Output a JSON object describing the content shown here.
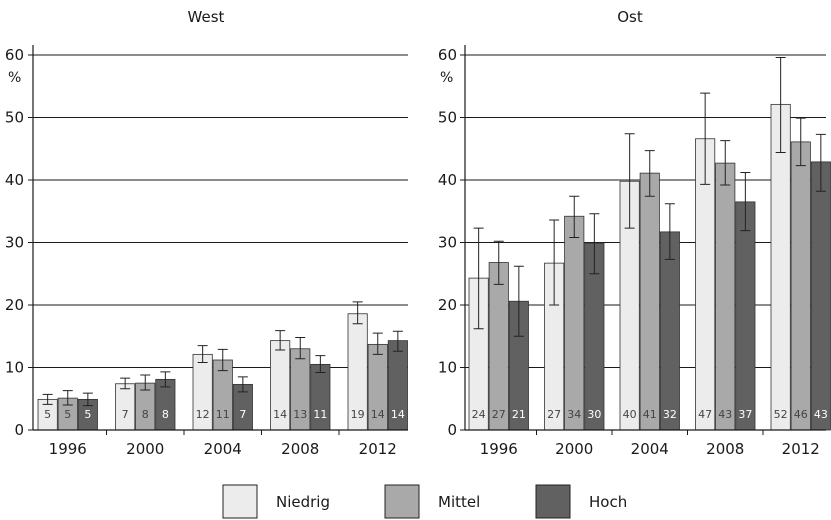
{
  "chart_data": [
    {
      "type": "bar",
      "title": "West",
      "unit": "%",
      "categories": [
        "1996",
        "2000",
        "2004",
        "2008",
        "2012"
      ],
      "ylim": [
        0,
        60
      ],
      "yticks": [
        "0",
        "10",
        "20",
        "30",
        "40",
        "50",
        "60"
      ],
      "grid": true,
      "series": [
        {
          "name": "Niedrig",
          "values": [
            5,
            7,
            12,
            14,
            19
          ],
          "heights": [
            4.9,
            7.4,
            12.1,
            14.3,
            18.6
          ],
          "err_low": [
            4.1,
            6.6,
            10.8,
            12.8,
            17.0
          ],
          "err_high": [
            5.7,
            8.3,
            13.5,
            15.9,
            20.5
          ],
          "labels": [
            "5",
            "7",
            "12",
            "14",
            "19"
          ]
        },
        {
          "name": "Mittel",
          "values": [
            5,
            8,
            11,
            13,
            14
          ],
          "heights": [
            5.1,
            7.5,
            11.2,
            13.0,
            13.7
          ],
          "err_low": [
            4.0,
            6.4,
            9.5,
            11.4,
            12.1
          ],
          "err_high": [
            6.3,
            8.8,
            12.9,
            14.8,
            15.5
          ],
          "labels": [
            "5",
            "8",
            "11",
            "13",
            "14"
          ]
        },
        {
          "name": "Hoch",
          "values": [
            5,
            8,
            7,
            11,
            14
          ],
          "heights": [
            4.9,
            8.1,
            7.3,
            10.5,
            14.3
          ],
          "err_low": [
            3.9,
            6.9,
            6.1,
            9.2,
            12.6
          ],
          "err_high": [
            5.9,
            9.3,
            8.5,
            11.9,
            15.8
          ],
          "labels": [
            "5",
            "8",
            "7",
            "11",
            "14"
          ]
        }
      ]
    },
    {
      "type": "bar",
      "title": "Ost",
      "unit": "%",
      "categories": [
        "1996",
        "2000",
        "2004",
        "2008",
        "2012"
      ],
      "ylim": [
        0,
        60
      ],
      "yticks": [
        "0",
        "10",
        "20",
        "30",
        "40",
        "50",
        "60"
      ],
      "grid": true,
      "series": [
        {
          "name": "Niedrig",
          "values": [
            24,
            27,
            40,
            47,
            52
          ],
          "heights": [
            24.3,
            26.7,
            39.8,
            46.6,
            52.1
          ],
          "err_low": [
            16.2,
            20.0,
            32.3,
            39.3,
            44.4
          ],
          "err_high": [
            32.3,
            33.6,
            47.4,
            53.9,
            59.6
          ],
          "labels": [
            "24",
            "27",
            "40",
            "47",
            "52"
          ]
        },
        {
          "name": "Mittel",
          "values": [
            27,
            34,
            41,
            43,
            46
          ],
          "heights": [
            26.8,
            34.2,
            41.1,
            42.7,
            46.1
          ],
          "err_low": [
            23.3,
            30.8,
            37.4,
            39.2,
            42.3
          ],
          "err_high": [
            30.2,
            37.4,
            44.7,
            46.3,
            49.9
          ],
          "labels": [
            "27",
            "34",
            "41",
            "43",
            "46"
          ]
        },
        {
          "name": "Hoch",
          "values": [
            21,
            30,
            32,
            37,
            43
          ],
          "heights": [
            20.6,
            29.9,
            31.7,
            36.5,
            42.9
          ],
          "err_low": [
            15.0,
            25.0,
            27.3,
            31.9,
            38.2
          ],
          "err_high": [
            26.2,
            34.6,
            36.2,
            41.2,
            47.3
          ],
          "labels": [
            "21",
            "30",
            "32",
            "37",
            "43"
          ]
        }
      ],
      "legend": {
        "position": "bottom",
        "entries": [
          "Niedrig",
          "Mittel",
          "Hoch"
        ]
      }
    }
  ],
  "colors": {
    "Niedrig": "#ececec",
    "Mittel": "#a9a9a9",
    "Hoch": "#616161",
    "label_light": "#444444",
    "label_dark": "#ffffff"
  }
}
